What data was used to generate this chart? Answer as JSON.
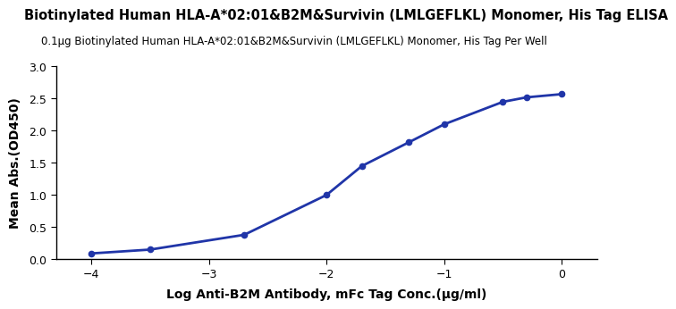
{
  "title": "Biotinylated Human HLA-A*02:01&B2M&Survivin (LMLGEFLKL) Monomer, His Tag ELISA",
  "subtitle": "0.1μg Biotinylated Human HLA-A*02:01&B2M&Survivin (LMLGEFLKL) Monomer, His Tag Per Well",
  "xlabel": "Log Anti-B2M Antibody, mFc Tag Conc.(μg/ml)",
  "ylabel": "Mean Abs.(OD450)",
  "x_data_pts": [
    -4.0,
    -3.5,
    -2.7,
    -2.0,
    -1.7,
    -1.3,
    -1.0,
    -0.5,
    -0.3,
    0.0
  ],
  "y_data_pts": [
    0.09,
    0.15,
    0.38,
    1.0,
    1.45,
    1.82,
    2.1,
    2.45,
    2.52,
    2.57
  ],
  "line_color": "#2035a8",
  "marker_color": "#2035a8",
  "xlim": [
    -4.3,
    0.3
  ],
  "ylim": [
    0.0,
    3.0
  ],
  "xticks": [
    -4,
    -3,
    -2,
    -1,
    0
  ],
  "yticks": [
    0.0,
    0.5,
    1.0,
    1.5,
    2.0,
    2.5,
    3.0
  ],
  "title_fontsize": 10.5,
  "subtitle_fontsize": 8.5,
  "axis_label_fontsize": 10,
  "tick_fontsize": 9
}
